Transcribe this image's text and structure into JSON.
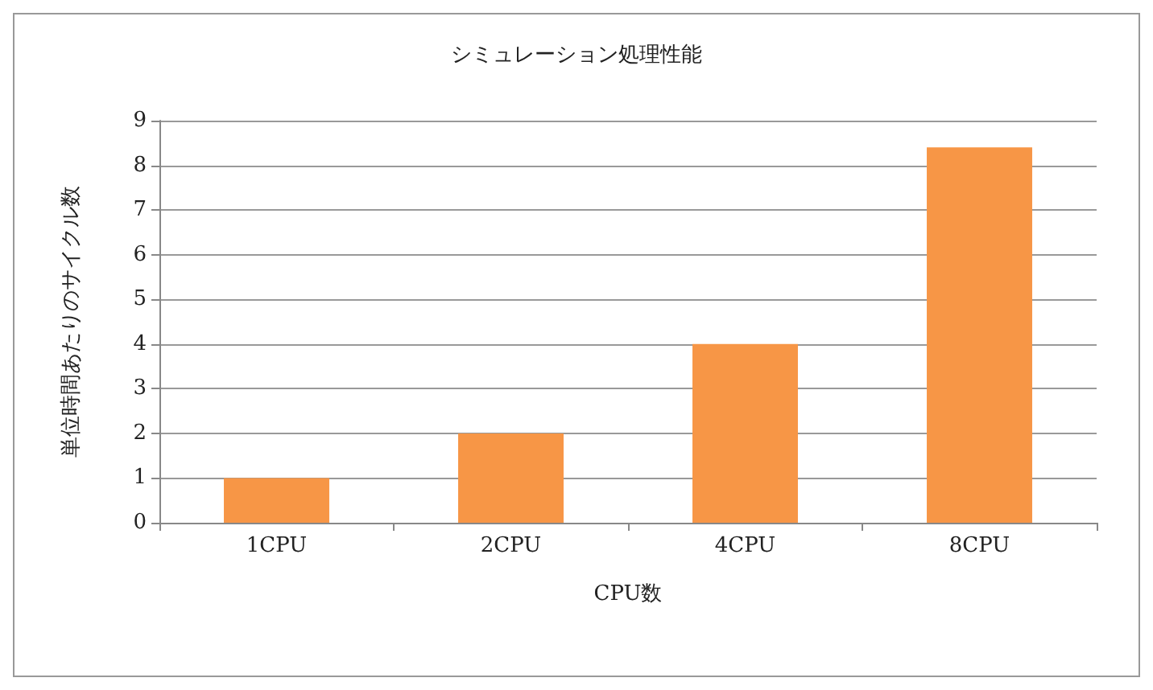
{
  "chart_data": {
    "type": "bar",
    "title": "シミュレーション処理性能",
    "xlabel": "CPU数",
    "ylabel": "単位時間あたりのサイクル数",
    "categories": [
      "1CPU",
      "2CPU",
      "4CPU",
      "8CPU"
    ],
    "values": [
      1,
      2,
      4,
      8.4
    ],
    "color": "#f79646",
    "ylim": [
      0,
      9
    ],
    "yticks": [
      0,
      1,
      2,
      3,
      4,
      5,
      6,
      7,
      8,
      9
    ],
    "grid": "y"
  }
}
